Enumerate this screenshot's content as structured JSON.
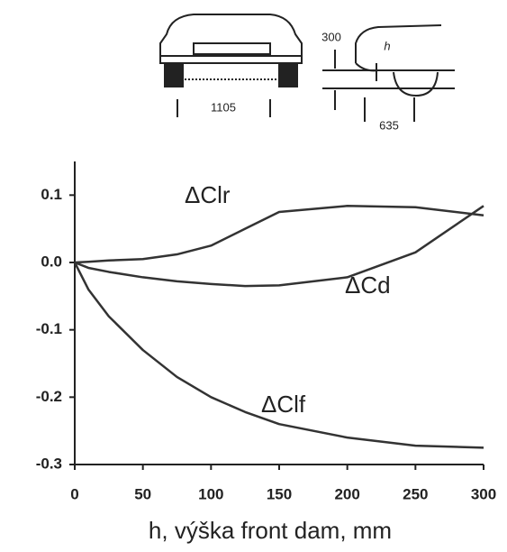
{
  "chart_data": {
    "type": "line",
    "x_label": "h, výška front dam, mm",
    "annotations": [
      "1105",
      "300",
      "h",
      "635"
    ],
    "x": [
      0,
      10,
      25,
      50,
      75,
      100,
      125,
      150,
      200,
      250,
      300
    ],
    "series": [
      {
        "name": "ΔClr",
        "color": "#333333",
        "values": [
          0,
          0.001,
          0.003,
          0.005,
          0.012,
          0.025,
          0.05,
          0.075,
          0.084,
          0.082,
          0.07
        ]
      },
      {
        "name": "ΔCd",
        "color": "#333333",
        "values": [
          0,
          -0.008,
          -0.014,
          -0.022,
          -0.028,
          -0.032,
          -0.035,
          -0.034,
          -0.022,
          0.015,
          0.084
        ]
      },
      {
        "name": "ΔClf",
        "color": "#333333",
        "values": [
          0,
          -0.04,
          -0.08,
          -0.13,
          -0.17,
          -0.2,
          -0.222,
          -0.24,
          -0.26,
          -0.272,
          -0.275
        ]
      }
    ],
    "xlim": [
      0,
      300
    ],
    "xticks": [
      0,
      50,
      100,
      150,
      200,
      250,
      300
    ],
    "ylim": [
      -0.3,
      0.15
    ],
    "yticks": [
      0.1,
      {
        "value": 0,
        "label": "0.0"
      },
      -0.1,
      -0.2,
      -0.3
    ],
    "grid": false
  }
}
